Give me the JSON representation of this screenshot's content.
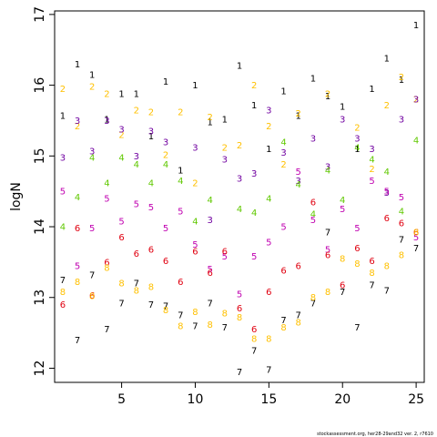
{
  "chart_data": {
    "type": "scatter",
    "title": "",
    "xlabel": "",
    "ylabel": "logN",
    "xlim": [
      0.45,
      25.55
    ],
    "ylim": [
      11.8,
      17.05
    ],
    "xticks": [
      5,
      10,
      15,
      20,
      25
    ],
    "yticks": [
      12,
      13,
      14,
      15,
      16,
      17
    ],
    "grid": false,
    "legend": "none",
    "footer": "stockassessment.org, her28-29and32 ver. 2, r7610",
    "colors": {
      "1": "#000000",
      "2": "#FFC000",
      "3": "#7000A0",
      "4": "#60C800",
      "5": "#C000B0",
      "6": "#E00010",
      "7": "#000000",
      "8": "#FFC000"
    },
    "points": [
      {
        "x": 2,
        "y": 16.3,
        "label": "1"
      },
      {
        "x": 3,
        "y": 16.15,
        "label": "1"
      },
      {
        "x": 1,
        "y": 15.57,
        "label": "1"
      },
      {
        "x": 4,
        "y": 15.52,
        "label": "1"
      },
      {
        "x": 5,
        "y": 15.88,
        "label": "1"
      },
      {
        "x": 6,
        "y": 15.88,
        "label": "1"
      },
      {
        "x": 7,
        "y": 15.28,
        "label": "1"
      },
      {
        "x": 8,
        "y": 16.05,
        "label": "1"
      },
      {
        "x": 9,
        "y": 14.8,
        "label": "1"
      },
      {
        "x": 10,
        "y": 16.0,
        "label": "1"
      },
      {
        "x": 11,
        "y": 15.48,
        "label": "1"
      },
      {
        "x": 12,
        "y": 15.52,
        "label": "1"
      },
      {
        "x": 13,
        "y": 16.28,
        "label": "1"
      },
      {
        "x": 14,
        "y": 15.72,
        "label": "1"
      },
      {
        "x": 15,
        "y": 15.1,
        "label": "1"
      },
      {
        "x": 16,
        "y": 15.92,
        "label": "1"
      },
      {
        "x": 17,
        "y": 15.57,
        "label": "1"
      },
      {
        "x": 18,
        "y": 16.1,
        "label": "1"
      },
      {
        "x": 19,
        "y": 15.85,
        "label": "1"
      },
      {
        "x": 20,
        "y": 15.7,
        "label": "1"
      },
      {
        "x": 21,
        "y": 15.1,
        "label": "1"
      },
      {
        "x": 22,
        "y": 15.95,
        "label": "1"
      },
      {
        "x": 23,
        "y": 16.38,
        "label": "1"
      },
      {
        "x": 24,
        "y": 16.08,
        "label": "1"
      },
      {
        "x": 25,
        "y": 16.85,
        "label": "1"
      },
      {
        "x": 1,
        "y": 15.95,
        "label": "2"
      },
      {
        "x": 2,
        "y": 15.42,
        "label": "2"
      },
      {
        "x": 3,
        "y": 15.98,
        "label": "2"
      },
      {
        "x": 4,
        "y": 15.88,
        "label": "2"
      },
      {
        "x": 5,
        "y": 15.3,
        "label": "2"
      },
      {
        "x": 6,
        "y": 15.65,
        "label": "2"
      },
      {
        "x": 7,
        "y": 15.62,
        "label": "2"
      },
      {
        "x": 8,
        "y": 15.02,
        "label": "2"
      },
      {
        "x": 9,
        "y": 15.62,
        "label": "2"
      },
      {
        "x": 10,
        "y": 14.62,
        "label": "2"
      },
      {
        "x": 11,
        "y": 15.55,
        "label": "2"
      },
      {
        "x": 12,
        "y": 15.12,
        "label": "2"
      },
      {
        "x": 13,
        "y": 15.15,
        "label": "2"
      },
      {
        "x": 14,
        "y": 16.0,
        "label": "2"
      },
      {
        "x": 15,
        "y": 15.42,
        "label": "2"
      },
      {
        "x": 16,
        "y": 14.88,
        "label": "2"
      },
      {
        "x": 17,
        "y": 15.6,
        "label": "2"
      },
      {
        "x": 19,
        "y": 15.88,
        "label": "2"
      },
      {
        "x": 21,
        "y": 15.4,
        "label": "2"
      },
      {
        "x": 22,
        "y": 14.82,
        "label": "2"
      },
      {
        "x": 23,
        "y": 15.72,
        "label": "2"
      },
      {
        "x": 24,
        "y": 16.12,
        "label": "2"
      },
      {
        "x": 25,
        "y": 15.8,
        "label": "2"
      },
      {
        "x": 1,
        "y": 14.98,
        "label": "3"
      },
      {
        "x": 2,
        "y": 15.5,
        "label": "3"
      },
      {
        "x": 3,
        "y": 15.07,
        "label": "3"
      },
      {
        "x": 4,
        "y": 15.5,
        "label": "3"
      },
      {
        "x": 5,
        "y": 15.38,
        "label": "3"
      },
      {
        "x": 6,
        "y": 15.0,
        "label": "3"
      },
      {
        "x": 7,
        "y": 15.35,
        "label": "3"
      },
      {
        "x": 8,
        "y": 15.2,
        "label": "3"
      },
      {
        "x": 10,
        "y": 15.12,
        "label": "3"
      },
      {
        "x": 11,
        "y": 14.1,
        "label": "3"
      },
      {
        "x": 12,
        "y": 14.95,
        "label": "3"
      },
      {
        "x": 13,
        "y": 14.68,
        "label": "3"
      },
      {
        "x": 14,
        "y": 14.75,
        "label": "3"
      },
      {
        "x": 15,
        "y": 15.65,
        "label": "3"
      },
      {
        "x": 16,
        "y": 15.05,
        "label": "3"
      },
      {
        "x": 17,
        "y": 14.65,
        "label": "3"
      },
      {
        "x": 18,
        "y": 15.25,
        "label": "3"
      },
      {
        "x": 19,
        "y": 14.85,
        "label": "3"
      },
      {
        "x": 20,
        "y": 15.52,
        "label": "3"
      },
      {
        "x": 21,
        "y": 15.25,
        "label": "3"
      },
      {
        "x": 22,
        "y": 15.1,
        "label": "3"
      },
      {
        "x": 23,
        "y": 14.48,
        "label": "3"
      },
      {
        "x": 24,
        "y": 15.52,
        "label": "3"
      },
      {
        "x": 25,
        "y": 15.8,
        "label": "3"
      },
      {
        "x": 1,
        "y": 14.0,
        "label": "4"
      },
      {
        "x": 2,
        "y": 14.42,
        "label": "4"
      },
      {
        "x": 3,
        "y": 14.98,
        "label": "4"
      },
      {
        "x": 4,
        "y": 14.62,
        "label": "4"
      },
      {
        "x": 5,
        "y": 14.98,
        "label": "4"
      },
      {
        "x": 6,
        "y": 14.88,
        "label": "4"
      },
      {
        "x": 7,
        "y": 14.62,
        "label": "4"
      },
      {
        "x": 8,
        "y": 14.88,
        "label": "4"
      },
      {
        "x": 9,
        "y": 14.65,
        "label": "4"
      },
      {
        "x": 10,
        "y": 14.08,
        "label": "4"
      },
      {
        "x": 11,
        "y": 14.38,
        "label": "4"
      },
      {
        "x": 13,
        "y": 14.25,
        "label": "4"
      },
      {
        "x": 14,
        "y": 14.2,
        "label": "4"
      },
      {
        "x": 15,
        "y": 14.4,
        "label": "4"
      },
      {
        "x": 16,
        "y": 15.2,
        "label": "4"
      },
      {
        "x": 17,
        "y": 14.6,
        "label": "4"
      },
      {
        "x": 18,
        "y": 14.18,
        "label": "4"
      },
      {
        "x": 19,
        "y": 14.8,
        "label": "4"
      },
      {
        "x": 20,
        "y": 14.38,
        "label": "4"
      },
      {
        "x": 21,
        "y": 15.12,
        "label": "4"
      },
      {
        "x": 22,
        "y": 14.95,
        "label": "4"
      },
      {
        "x": 23,
        "y": 14.78,
        "label": "4"
      },
      {
        "x": 24,
        "y": 14.22,
        "label": "4"
      },
      {
        "x": 25,
        "y": 15.22,
        "label": "4"
      },
      {
        "x": 1,
        "y": 14.5,
        "label": "5"
      },
      {
        "x": 2,
        "y": 13.45,
        "label": "5"
      },
      {
        "x": 3,
        "y": 13.98,
        "label": "5"
      },
      {
        "x": 4,
        "y": 14.4,
        "label": "5"
      },
      {
        "x": 5,
        "y": 14.08,
        "label": "5"
      },
      {
        "x": 6,
        "y": 14.32,
        "label": "5"
      },
      {
        "x": 7,
        "y": 14.28,
        "label": "5"
      },
      {
        "x": 8,
        "y": 13.98,
        "label": "5"
      },
      {
        "x": 9,
        "y": 14.22,
        "label": "5"
      },
      {
        "x": 10,
        "y": 13.75,
        "label": "5"
      },
      {
        "x": 11,
        "y": 13.4,
        "label": "5"
      },
      {
        "x": 12,
        "y": 13.58,
        "label": "5"
      },
      {
        "x": 13,
        "y": 13.05,
        "label": "5"
      },
      {
        "x": 14,
        "y": 13.58,
        "label": "5"
      },
      {
        "x": 15,
        "y": 13.78,
        "label": "5"
      },
      {
        "x": 16,
        "y": 14.0,
        "label": "5"
      },
      {
        "x": 17,
        "y": 14.78,
        "label": "5"
      },
      {
        "x": 18,
        "y": 14.1,
        "label": "5"
      },
      {
        "x": 19,
        "y": 13.68,
        "label": "5"
      },
      {
        "x": 20,
        "y": 14.25,
        "label": "5"
      },
      {
        "x": 21,
        "y": 13.98,
        "label": "5"
      },
      {
        "x": 22,
        "y": 14.65,
        "label": "5"
      },
      {
        "x": 23,
        "y": 14.5,
        "label": "5"
      },
      {
        "x": 24,
        "y": 14.42,
        "label": "5"
      },
      {
        "x": 25,
        "y": 13.85,
        "label": "5"
      },
      {
        "x": 1,
        "y": 12.9,
        "label": "6"
      },
      {
        "x": 2,
        "y": 13.98,
        "label": "6"
      },
      {
        "x": 3,
        "y": 13.03,
        "label": "6"
      },
      {
        "x": 4,
        "y": 13.5,
        "label": "6"
      },
      {
        "x": 5,
        "y": 13.85,
        "label": "6"
      },
      {
        "x": 6,
        "y": 13.62,
        "label": "6"
      },
      {
        "x": 7,
        "y": 13.68,
        "label": "6"
      },
      {
        "x": 8,
        "y": 13.52,
        "label": "6"
      },
      {
        "x": 9,
        "y": 13.22,
        "label": "6"
      },
      {
        "x": 10,
        "y": 13.65,
        "label": "6"
      },
      {
        "x": 11,
        "y": 13.35,
        "label": "6"
      },
      {
        "x": 12,
        "y": 13.65,
        "label": "6"
      },
      {
        "x": 13,
        "y": 12.85,
        "label": "6"
      },
      {
        "x": 14,
        "y": 12.55,
        "label": "6"
      },
      {
        "x": 15,
        "y": 13.08,
        "label": "6"
      },
      {
        "x": 16,
        "y": 13.38,
        "label": "6"
      },
      {
        "x": 17,
        "y": 13.45,
        "label": "6"
      },
      {
        "x": 18,
        "y": 14.35,
        "label": "6"
      },
      {
        "x": 19,
        "y": 13.6,
        "label": "6"
      },
      {
        "x": 20,
        "y": 13.18,
        "label": "6"
      },
      {
        "x": 21,
        "y": 13.7,
        "label": "6"
      },
      {
        "x": 22,
        "y": 13.52,
        "label": "6"
      },
      {
        "x": 23,
        "y": 14.12,
        "label": "6"
      },
      {
        "x": 24,
        "y": 14.05,
        "label": "6"
      },
      {
        "x": 25,
        "y": 13.92,
        "label": "6"
      },
      {
        "x": 1,
        "y": 13.25,
        "label": "7"
      },
      {
        "x": 2,
        "y": 12.4,
        "label": "7"
      },
      {
        "x": 3,
        "y": 13.32,
        "label": "7"
      },
      {
        "x": 4,
        "y": 12.55,
        "label": "7"
      },
      {
        "x": 5,
        "y": 12.92,
        "label": "7"
      },
      {
        "x": 6,
        "y": 13.2,
        "label": "7"
      },
      {
        "x": 7,
        "y": 12.9,
        "label": "7"
      },
      {
        "x": 8,
        "y": 12.88,
        "label": "7"
      },
      {
        "x": 9,
        "y": 12.75,
        "label": "7"
      },
      {
        "x": 10,
        "y": 12.6,
        "label": "7"
      },
      {
        "x": 11,
        "y": 12.92,
        "label": "7"
      },
      {
        "x": 12,
        "y": 12.58,
        "label": "7"
      },
      {
        "x": 13,
        "y": 11.95,
        "label": "7"
      },
      {
        "x": 14,
        "y": 12.25,
        "label": "7"
      },
      {
        "x": 15,
        "y": 11.98,
        "label": "7"
      },
      {
        "x": 16,
        "y": 12.68,
        "label": "7"
      },
      {
        "x": 17,
        "y": 12.75,
        "label": "7"
      },
      {
        "x": 18,
        "y": 12.92,
        "label": "7"
      },
      {
        "x": 19,
        "y": 13.92,
        "label": "7"
      },
      {
        "x": 20,
        "y": 13.08,
        "label": "7"
      },
      {
        "x": 21,
        "y": 12.58,
        "label": "7"
      },
      {
        "x": 22,
        "y": 13.18,
        "label": "7"
      },
      {
        "x": 23,
        "y": 13.1,
        "label": "7"
      },
      {
        "x": 24,
        "y": 13.82,
        "label": "7"
      },
      {
        "x": 25,
        "y": 13.7,
        "label": "7"
      },
      {
        "x": 1,
        "y": 13.08,
        "label": "8"
      },
      {
        "x": 2,
        "y": 13.22,
        "label": "8"
      },
      {
        "x": 3,
        "y": 13.02,
        "label": "8"
      },
      {
        "x": 4,
        "y": 13.42,
        "label": "8"
      },
      {
        "x": 5,
        "y": 13.2,
        "label": "8"
      },
      {
        "x": 6,
        "y": 13.1,
        "label": "8"
      },
      {
        "x": 7,
        "y": 13.15,
        "label": "8"
      },
      {
        "x": 8,
        "y": 12.82,
        "label": "8"
      },
      {
        "x": 9,
        "y": 12.6,
        "label": "8"
      },
      {
        "x": 10,
        "y": 12.8,
        "label": "8"
      },
      {
        "x": 11,
        "y": 12.62,
        "label": "8"
      },
      {
        "x": 12,
        "y": 12.78,
        "label": "8"
      },
      {
        "x": 13,
        "y": 12.72,
        "label": "8"
      },
      {
        "x": 14,
        "y": 12.42,
        "label": "8"
      },
      {
        "x": 15,
        "y": 12.42,
        "label": "8"
      },
      {
        "x": 16,
        "y": 12.58,
        "label": "8"
      },
      {
        "x": 17,
        "y": 12.65,
        "label": "8"
      },
      {
        "x": 18,
        "y": 13.0,
        "label": "8"
      },
      {
        "x": 19,
        "y": 13.08,
        "label": "8"
      },
      {
        "x": 20,
        "y": 13.55,
        "label": "8"
      },
      {
        "x": 21,
        "y": 13.48,
        "label": "8"
      },
      {
        "x": 22,
        "y": 13.35,
        "label": "8"
      },
      {
        "x": 23,
        "y": 13.45,
        "label": "8"
      },
      {
        "x": 24,
        "y": 13.6,
        "label": "8"
      },
      {
        "x": 25,
        "y": 13.92,
        "label": "8"
      }
    ]
  }
}
